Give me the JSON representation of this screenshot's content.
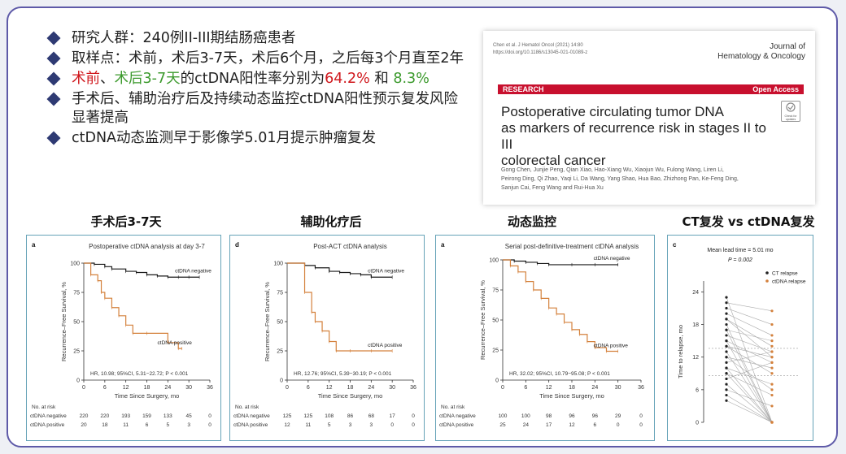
{
  "bullets": [
    {
      "segments": [
        {
          "text": "研究人群：240例II-III期结肠癌患者",
          "color": "default"
        }
      ]
    },
    {
      "segments": [
        {
          "text": "取样点：术前，术后3-7天，术后6个月，之后每3个月直至2年",
          "color": "default"
        }
      ]
    },
    {
      "segments": [
        {
          "text": "术前",
          "color": "red"
        },
        {
          "text": "、",
          "color": "default"
        },
        {
          "text": "术后3-7天",
          "color": "green"
        },
        {
          "text": "的ctDNA阳性率分别为",
          "color": "default"
        },
        {
          "text": "64.2%",
          "color": "red"
        },
        {
          "text": " 和 ",
          "color": "default"
        },
        {
          "text": "8.3%",
          "color": "green"
        }
      ]
    },
    {
      "segments": [
        {
          "text": "手术后、辅助治疗后及持续动态监控ctDNA阳性预示复发风险显著提高",
          "color": "default"
        }
      ]
    },
    {
      "segments": [
        {
          "text": "ctDNA动态监测早于影像学5.01月提示肿瘤复发",
          "color": "default"
        }
      ]
    }
  ],
  "paper": {
    "meta_line1": "Chen et al. J Hematol Oncol (2021) 14:80",
    "meta_line2": "https://doi.org/10.1186/s13045-021-01089-z",
    "journal_line1": "Journal of",
    "journal_line2": "Hematology & Oncology",
    "section": "RESEARCH",
    "access": "Open Access",
    "title_line1": "Postoperative circulating tumor DNA",
    "title_line2": "as markers of recurrence risk in stages II to III",
    "title_line3": "colorectal cancer",
    "authors_line1": "Gong Chen, Junjie Peng, Qian Xiao, Hao-Xiang Wu, Xiaojun Wu, Fulong Wang, Liren Li,",
    "authors_line2": "Peirong Ding, Qi Zhao, Yaqi Li, Da Wang, Yang Shao, Hua Bao, Zhizhong Pan, Ke-Feng Ding,",
    "authors_line3": "Sanjun Cai, Feng Wang and Rui-Hua Xu",
    "badge": "Check for updates"
  },
  "headings": [
    "手术后3-7天",
    "辅助化疗后",
    "动态监控",
    "CT复发 vs ctDNA复发"
  ],
  "colors": {
    "accent": "#2e3a73",
    "red": "#d0181d",
    "green": "#3c9a2d",
    "negative": "#1a1a1a",
    "positive": "#d4813c",
    "frame": "#5e5aa8",
    "panel_border": "#66a3b8"
  },
  "chart_data": [
    {
      "type": "line",
      "panel_letter": "a",
      "title": "Postoperative ctDNA analysis at day 3-7",
      "ylabel": "Recurrence–Free Survival, %",
      "xlabel": "Time Since Surgery, mo",
      "xlim": [
        0,
        36
      ],
      "ylim": [
        0,
        100
      ],
      "xticks": [
        0,
        6,
        12,
        18,
        24,
        30,
        36
      ],
      "yticks": [
        0,
        25,
        50,
        75,
        100
      ],
      "series": [
        {
          "name": "ctDNA negative",
          "x": [
            0,
            3,
            6,
            8,
            12,
            15,
            18,
            21,
            24,
            27,
            30,
            33
          ],
          "y": [
            100,
            99,
            97,
            95,
            93,
            92,
            90,
            89,
            88,
            88,
            88,
            88
          ]
        },
        {
          "name": "ctDNA positive",
          "x": [
            0,
            2,
            4,
            5,
            6,
            8,
            10,
            12,
            14,
            18,
            24,
            27,
            28
          ],
          "y": [
            100,
            90,
            85,
            75,
            70,
            62,
            55,
            47,
            40,
            40,
            32,
            27,
            27
          ]
        }
      ],
      "hr_text": "HR, 10.98; 95%CI, 5.31−22.72; P < 0.001",
      "risk_header": "No. at risk",
      "risk_table": [
        {
          "label": "ctDNA negative",
          "counts": [
            "220",
            "220",
            "193",
            "159",
            "133",
            "45",
            "0"
          ]
        },
        {
          "label": "ctDNA positive",
          "counts": [
            "20",
            "18",
            "11",
            "6",
            "5",
            "3",
            "0"
          ]
        }
      ]
    },
    {
      "type": "line",
      "panel_letter": "d",
      "title": "Post-ACT ctDNA analysis",
      "ylabel": "Recurrence–Free Survival, %",
      "xlabel": "Time Since Surgery, mo",
      "xlim": [
        0,
        36
      ],
      "ylim": [
        0,
        100
      ],
      "xticks": [
        0,
        6,
        12,
        18,
        24,
        30,
        36
      ],
      "yticks": [
        0,
        25,
        50,
        75,
        100
      ],
      "series": [
        {
          "name": "ctDNA negative",
          "x": [
            0,
            5,
            8,
            12,
            15,
            18,
            21,
            24,
            30
          ],
          "y": [
            100,
            98,
            96,
            93,
            92,
            91,
            90,
            88,
            88
          ]
        },
        {
          "name": "ctDNA positive",
          "x": [
            0,
            5,
            7,
            8,
            10,
            12,
            14,
            18,
            24,
            30
          ],
          "y": [
            100,
            75,
            58,
            50,
            42,
            33,
            25,
            25,
            25,
            25
          ]
        }
      ],
      "hr_text": "HR, 12.76; 95%CI, 5.39−30.19; P < 0.001",
      "risk_header": "No. at risk",
      "risk_table": [
        {
          "label": "ctDNA negative",
          "counts": [
            "125",
            "125",
            "108",
            "86",
            "68",
            "17",
            "0"
          ]
        },
        {
          "label": "ctDNA positive",
          "counts": [
            "12",
            "11",
            "5",
            "3",
            "3",
            "0",
            "0"
          ]
        }
      ]
    },
    {
      "type": "line",
      "panel_letter": "a",
      "title": "Serial post-definitive-treatment ctDNA analysis",
      "ylabel": "Recurrence–Free Survival, %",
      "xlabel": "Time Since Surgery, mo",
      "xlim": [
        0,
        36
      ],
      "ylim": [
        0,
        100
      ],
      "xticks": [
        0,
        6,
        12,
        18,
        24,
        30,
        36
      ],
      "yticks": [
        0,
        25,
        50,
        75,
        100
      ],
      "series": [
        {
          "name": "ctDNA negative",
          "x": [
            0,
            3,
            6,
            9,
            12,
            18,
            24,
            30
          ],
          "y": [
            100,
            99,
            98,
            97,
            96,
            96,
            96,
            96
          ]
        },
        {
          "name": "ctDNA positive",
          "x": [
            0,
            2,
            4,
            6,
            8,
            10,
            12,
            14,
            16,
            18,
            20,
            22,
            24,
            27,
            30
          ],
          "y": [
            100,
            95,
            90,
            82,
            75,
            68,
            60,
            55,
            48,
            42,
            38,
            32,
            27,
            24,
            24
          ]
        }
      ],
      "hr_text": "HR, 32.02; 95%CI, 10.79−95.08; P < 0.001",
      "risk_header": "No. at risk",
      "risk_table": [
        {
          "label": "ctDNA negative",
          "counts": [
            "100",
            "100",
            "98",
            "96",
            "96",
            "29",
            "0"
          ]
        },
        {
          "label": "ctDNA positive",
          "counts": [
            "25",
            "24",
            "17",
            "12",
            "6",
            "0",
            "0"
          ]
        }
      ]
    },
    {
      "type": "scatter",
      "panel_letter": "c",
      "annotation_line1": "Mean lead time = 5.01 mo",
      "annotation_line2": "P = 0.002",
      "ylabel": "Time to relapse, mo",
      "ylim": [
        0,
        26
      ],
      "yticks": [
        0,
        6,
        12,
        18,
        24
      ],
      "legend": [
        "CT relapse",
        "ctDNA relapse"
      ],
      "mean_lines": [
        13.6,
        8.6
      ],
      "pairs": [
        [
          23,
          0
        ],
        [
          22,
          20.5
        ],
        [
          21,
          18
        ],
        [
          20,
          16
        ],
        [
          19,
          14
        ],
        [
          19,
          12
        ],
        [
          18,
          0
        ],
        [
          17,
          15
        ],
        [
          17,
          0
        ],
        [
          16,
          13
        ],
        [
          15,
          11
        ],
        [
          15,
          0
        ],
        [
          14,
          12
        ],
        [
          14,
          9
        ],
        [
          13,
          0
        ],
        [
          12,
          10
        ],
        [
          12,
          6
        ],
        [
          11,
          13
        ],
        [
          10,
          0
        ],
        [
          10,
          7
        ],
        [
          9,
          0
        ],
        [
          9,
          5
        ],
        [
          8,
          11
        ],
        [
          7,
          0
        ],
        [
          6,
          3
        ],
        [
          5,
          0
        ],
        [
          4,
          0
        ]
      ]
    }
  ]
}
